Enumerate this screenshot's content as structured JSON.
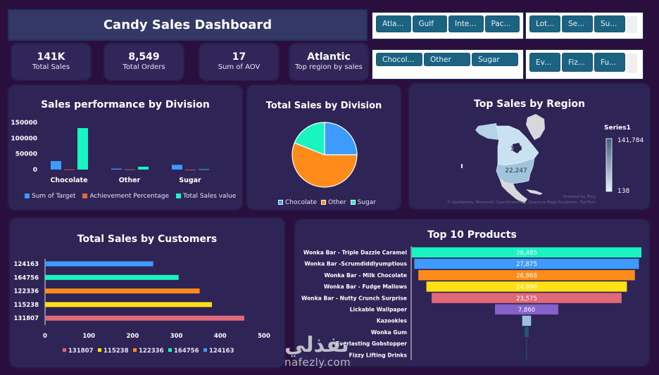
{
  "header": {
    "title": "Candy Sales Dashboard"
  },
  "kpis": [
    {
      "value": "141K",
      "label": "Total Sales"
    },
    {
      "value": "8,549",
      "label": "Total Orders"
    },
    {
      "value": "17",
      "label": "Sum of AOV"
    },
    {
      "value": "Atlantic",
      "label": "Top region by sales"
    }
  ],
  "slicers": {
    "region": [
      "Atla...",
      "Gulf",
      "Inte...",
      "Pac..."
    ],
    "factory": [
      "Lot...",
      "Se...",
      "Su..."
    ],
    "division": [
      "Chocol...",
      "Other",
      "Sugar"
    ],
    "product": [
      "Ev...",
      "Fiz...",
      "Fu..."
    ]
  },
  "colors": {
    "blue": "#3d9bff",
    "orange": "#ff8c1a",
    "teal": "#19f5c1",
    "red_orange": "#e06a3e",
    "yellow": "#ffe017",
    "pink": "#e06878",
    "purple": "#8561c9",
    "light_blue": "#9ec0de",
    "dark_teal": "#1e5b73"
  },
  "chart_data": [
    {
      "id": "sales-performance",
      "type": "bar",
      "title": "Sales performance by Division",
      "categories": [
        "Chocolate",
        "Other",
        "Sugar"
      ],
      "series": [
        {
          "name": "Sum of Target",
          "values": [
            27000,
            3000,
            15000
          ]
        },
        {
          "name": "Achievement Percentage",
          "values": [
            500,
            500,
            0
          ]
        },
        {
          "name": "Total Sales value",
          "values": [
            132000,
            9000,
            1000
          ]
        }
      ],
      "yticks": [
        "150000",
        "100000",
        "50000",
        "0"
      ],
      "ylim": [
        0,
        150000
      ],
      "legend": "bottom",
      "xlabel": "",
      "ylabel": ""
    },
    {
      "id": "total-sales-division",
      "type": "pie",
      "title": "Total Sales by Division",
      "categories": [
        "Chocolate",
        "Other",
        "Sugar"
      ],
      "values": [
        25,
        56,
        19
      ],
      "legend": "bottom"
    },
    {
      "id": "top-sales-region",
      "type": "heatmap",
      "title": "Top Sales by Region",
      "regions": [
        {
          "name": "Canada",
          "value": 138,
          "label": "138"
        },
        {
          "name": "United States",
          "value": 22247,
          "label": "22,247"
        }
      ],
      "legend_title": "Series1",
      "scale_max": "141,784",
      "scale_min": "138",
      "attribution_1": "Powered by Bing",
      "attribution_2": "© GeoNames, Microsoft, OpenStreetMap, Overture Maps Fundation, TomTom"
    },
    {
      "id": "sales-by-customers",
      "type": "bar",
      "orientation": "horizontal",
      "title": "Total Sales by Customers",
      "categories": [
        "124163",
        "164756",
        "122336",
        "115238",
        "131807"
      ],
      "values": [
        247,
        305,
        353,
        381,
        455
      ],
      "xticks": [
        "0",
        "100",
        "200",
        "300",
        "400",
        "500"
      ],
      "xlim": [
        0,
        500
      ],
      "legend_entries": [
        "131807",
        "115238",
        "122336",
        "164756",
        "124163"
      ],
      "legend": "bottom"
    },
    {
      "id": "top-10-products",
      "type": "bar",
      "orientation": "funnel",
      "title": "Top 10 Products",
      "categories": [
        "Wonka Bar - Triple Dazzle Caramel",
        "Wonka Bar -Scrumdiddlyumptious",
        "Wonka Bar - Milk Chocolate",
        "Wonka Bar - Fudge Mallows",
        "Wonka Bar - Nutty Crunch Surprise",
        "Lickable Wallpaper",
        "Kazookles",
        "Wonka Gum",
        "Everlasting Gobstopper",
        "Fizzy Lifting Drinks"
      ],
      "values": [
        28485,
        27875,
        26868,
        24890,
        23575,
        7860,
        1100,
        500,
        60,
        20
      ],
      "value_labels": [
        "28,485",
        "27,875",
        "26,868",
        "24,890",
        "23,575",
        "7,860",
        "",
        "",
        "",
        ""
      ]
    }
  ],
  "watermark": {
    "arabic": "نفذلي",
    "latin": "nafezly.com"
  }
}
